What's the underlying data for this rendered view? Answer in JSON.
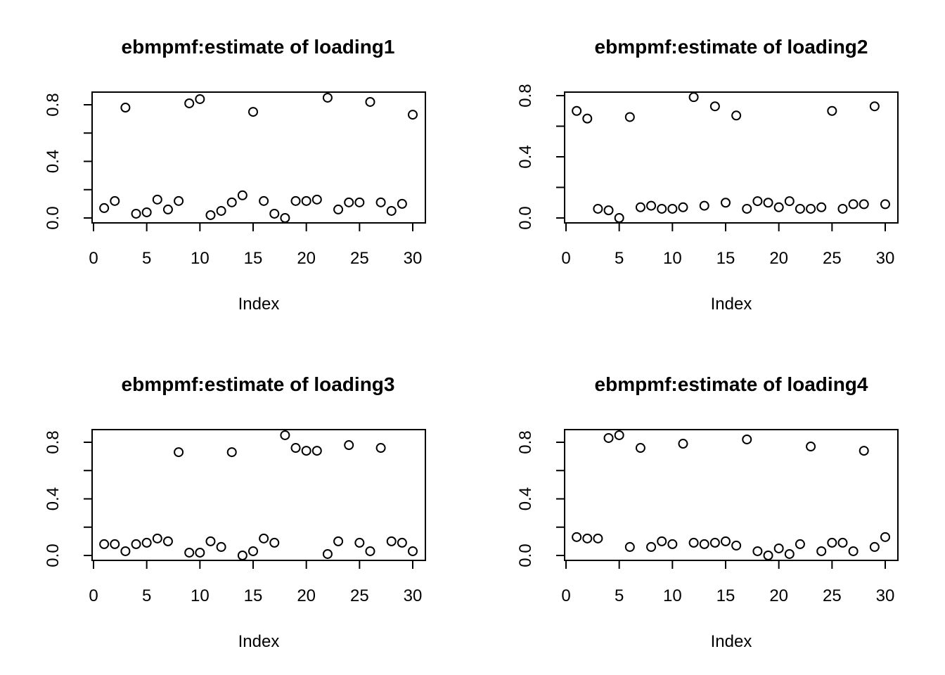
{
  "chart_data": [
    {
      "type": "scatter",
      "title": "ebmpmf:estimate of loading1",
      "xlabel": "Index",
      "ylabel": "",
      "xlim": [
        0,
        30
      ],
      "ylim": [
        0,
        0.85
      ],
      "xticks": [
        0,
        5,
        10,
        15,
        20,
        25,
        30
      ],
      "xtick_labels": [
        "0",
        "5",
        "10",
        "15",
        "20",
        "25",
        "30"
      ],
      "yticks": [
        0.0,
        0.4,
        0.8
      ],
      "ytick_labels": [
        "0.0",
        "0.4",
        "0.8"
      ],
      "grid": false,
      "x": [
        1,
        2,
        3,
        4,
        5,
        6,
        7,
        8,
        9,
        10,
        11,
        12,
        13,
        14,
        15,
        16,
        17,
        18,
        19,
        20,
        21,
        22,
        23,
        24,
        25,
        26,
        27,
        28,
        29,
        30
      ],
      "y": [
        0.07,
        0.12,
        0.78,
        0.03,
        0.04,
        0.13,
        0.06,
        0.12,
        0.81,
        0.84,
        0.02,
        0.05,
        0.11,
        0.16,
        0.75,
        0.12,
        0.03,
        0.0,
        0.12,
        0.12,
        0.13,
        0.85,
        0.06,
        0.11,
        0.11,
        0.82,
        0.11,
        0.05,
        0.1,
        0.73
      ]
    },
    {
      "type": "scatter",
      "title": "ebmpmf:estimate of loading2",
      "xlabel": "Index",
      "ylabel": "",
      "xlim": [
        0,
        30
      ],
      "ylim": [
        0,
        0.8
      ],
      "xticks": [
        0,
        5,
        10,
        15,
        20,
        25,
        30
      ],
      "xtick_labels": [
        "0",
        "5",
        "10",
        "15",
        "20",
        "25",
        "30"
      ],
      "yticks": [
        0.0,
        0.4,
        0.8
      ],
      "ytick_labels": [
        "0.0",
        "0.4",
        "0.8"
      ],
      "grid": false,
      "x": [
        1,
        2,
        3,
        4,
        5,
        6,
        7,
        8,
        9,
        10,
        11,
        12,
        13,
        14,
        15,
        16,
        17,
        18,
        19,
        20,
        21,
        22,
        23,
        24,
        25,
        26,
        27,
        28,
        29,
        30
      ],
      "y": [
        0.7,
        0.65,
        0.06,
        0.05,
        0.0,
        0.66,
        0.07,
        0.08,
        0.06,
        0.06,
        0.07,
        0.79,
        0.08,
        0.73,
        0.1,
        0.67,
        0.06,
        0.11,
        0.1,
        0.07,
        0.11,
        0.06,
        0.06,
        0.07,
        0.7,
        0.06,
        0.09,
        0.09,
        0.73,
        0.09
      ]
    },
    {
      "type": "scatter",
      "title": "ebmpmf:estimate of loading3",
      "xlabel": "Index",
      "ylabel": "",
      "xlim": [
        0,
        30
      ],
      "ylim": [
        0,
        0.85
      ],
      "xticks": [
        0,
        5,
        10,
        15,
        20,
        25,
        30
      ],
      "xtick_labels": [
        "0",
        "5",
        "10",
        "15",
        "20",
        "25",
        "30"
      ],
      "yticks": [
        0.0,
        0.4,
        0.8
      ],
      "ytick_labels": [
        "0.0",
        "0.4",
        "0.8"
      ],
      "grid": false,
      "x": [
        1,
        2,
        3,
        4,
        5,
        6,
        7,
        8,
        9,
        10,
        11,
        12,
        13,
        14,
        15,
        16,
        17,
        18,
        19,
        20,
        21,
        22,
        23,
        24,
        25,
        26,
        27,
        28,
        29,
        30
      ],
      "y": [
        0.08,
        0.08,
        0.03,
        0.08,
        0.09,
        0.12,
        0.1,
        0.73,
        0.02,
        0.02,
        0.1,
        0.06,
        0.73,
        0.0,
        0.03,
        0.12,
        0.09,
        0.85,
        0.76,
        0.74,
        0.74,
        0.01,
        0.1,
        0.78,
        0.09,
        0.03,
        0.76,
        0.1,
        0.09,
        0.03
      ]
    },
    {
      "type": "scatter",
      "title": "ebmpmf:estimate of loading4",
      "xlabel": "Index",
      "ylabel": "",
      "xlim": [
        0,
        30
      ],
      "ylim": [
        0,
        0.85
      ],
      "xticks": [
        0,
        5,
        10,
        15,
        20,
        25,
        30
      ],
      "xtick_labels": [
        "0",
        "5",
        "10",
        "15",
        "20",
        "25",
        "30"
      ],
      "yticks": [
        0.0,
        0.4,
        0.8
      ],
      "ytick_labels": [
        "0.0",
        "0.4",
        "0.8"
      ],
      "grid": false,
      "x": [
        1,
        2,
        3,
        4,
        5,
        6,
        7,
        8,
        9,
        10,
        11,
        12,
        13,
        14,
        15,
        16,
        17,
        18,
        19,
        20,
        21,
        22,
        23,
        24,
        25,
        26,
        27,
        28,
        29,
        30
      ],
      "y": [
        0.13,
        0.12,
        0.12,
        0.83,
        0.85,
        0.06,
        0.76,
        0.06,
        0.1,
        0.08,
        0.79,
        0.09,
        0.08,
        0.09,
        0.1,
        0.07,
        0.82,
        0.03,
        0.0,
        0.05,
        0.01,
        0.08,
        0.77,
        0.03,
        0.09,
        0.09,
        0.03,
        0.74,
        0.06,
        0.13
      ]
    }
  ]
}
